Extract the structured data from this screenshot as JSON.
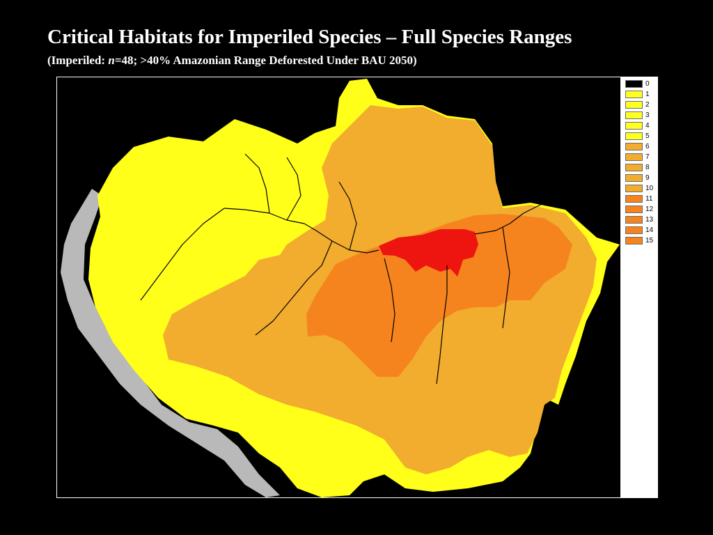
{
  "title": "Critical Habitats for Imperiled Species – Full Species Ranges",
  "subtitle": {
    "prefix": "(Imperiled: ",
    "n_symbol": "n",
    "suffix": "=48; >40% Amazonian Range Deforested Under BAU 2050)"
  },
  "colors": {
    "background": "#000000",
    "outside_basin": "#b9b9b9",
    "rivers": "#000000",
    "class_0": "#000000",
    "class_1_5": "#ffff1a",
    "class_6_10": "#f2ac2e",
    "class_11_14": "#f6841e",
    "class_15": "#ee1410"
  },
  "legend": {
    "items": [
      {
        "label": "0",
        "color": "#000000"
      },
      {
        "label": "1",
        "color": "#ffff22"
      },
      {
        "label": "2",
        "color": "#ffff22"
      },
      {
        "label": "3",
        "color": "#ffff22"
      },
      {
        "label": "4",
        "color": "#ffff22"
      },
      {
        "label": "5",
        "color": "#ffff22"
      },
      {
        "label": "6",
        "color": "#f2ac2e"
      },
      {
        "label": "7",
        "color": "#f2ac2e"
      },
      {
        "label": "8",
        "color": "#f2ac2e"
      },
      {
        "label": "9",
        "color": "#f2ac2e"
      },
      {
        "label": "10",
        "color": "#f2ac2e"
      },
      {
        "label": "11",
        "color": "#f6841e"
      },
      {
        "label": "12",
        "color": "#f6841e"
      },
      {
        "label": "13",
        "color": "#f6841e"
      },
      {
        "label": "14",
        "color": "#f6841e"
      },
      {
        "label": "15",
        "color": "#f6841e"
      }
    ]
  }
}
